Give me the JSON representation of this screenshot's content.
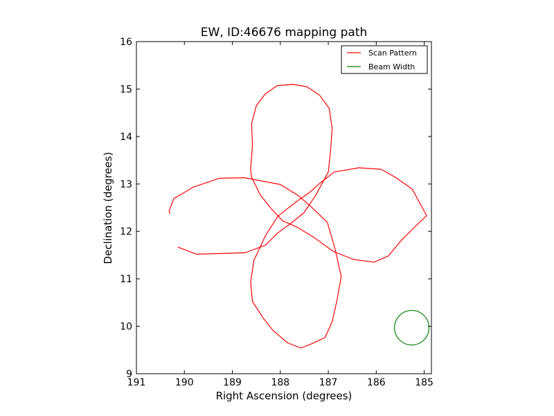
{
  "chart_data": {
    "type": "line",
    "title": "EW, ID:46676 mapping path",
    "xlabel": "Right Ascension (degrees)",
    "ylabel": "Declination (degrees)",
    "xlim": [
      191,
      184.85
    ],
    "ylim": [
      9,
      16
    ],
    "x_inverted": true,
    "xticks": [
      191,
      190,
      189,
      188,
      187,
      186,
      185
    ],
    "yticks": [
      9,
      10,
      11,
      12,
      13,
      14,
      15,
      16
    ],
    "grid": false,
    "legend_position": "top-right",
    "series": [
      {
        "name": "Scan Pattern",
        "color": "#ff0000",
        "points": [
          [
            190.3,
            12.37
          ],
          [
            190.32,
            12.43
          ],
          [
            190.22,
            12.69
          ],
          [
            189.82,
            12.93
          ],
          [
            189.27,
            13.12
          ],
          [
            188.75,
            13.13
          ],
          [
            188.0,
            12.99
          ],
          [
            187.62,
            12.75
          ],
          [
            187.36,
            12.52
          ],
          [
            187.02,
            12.19
          ],
          [
            186.86,
            11.63
          ],
          [
            186.73,
            11.05
          ],
          [
            186.82,
            10.54
          ],
          [
            186.92,
            10.09
          ],
          [
            187.07,
            9.76
          ],
          [
            187.35,
            9.63
          ],
          [
            187.57,
            9.54
          ],
          [
            187.85,
            9.65
          ],
          [
            188.15,
            9.91
          ],
          [
            188.35,
            10.16
          ],
          [
            188.58,
            10.52
          ],
          [
            188.62,
            10.93
          ],
          [
            188.55,
            11.39
          ],
          [
            188.31,
            11.91
          ],
          [
            188.05,
            12.32
          ],
          [
            187.66,
            12.63
          ],
          [
            187.38,
            12.83
          ],
          [
            187.17,
            13.02
          ],
          [
            186.88,
            13.25
          ],
          [
            186.36,
            13.34
          ],
          [
            185.9,
            13.31
          ],
          [
            185.6,
            13.14
          ],
          [
            185.25,
            12.89
          ],
          [
            184.95,
            12.33
          ],
          [
            185.17,
            12.12
          ],
          [
            185.48,
            11.81
          ],
          [
            185.75,
            11.48
          ],
          [
            186.05,
            11.35
          ],
          [
            186.48,
            11.41
          ],
          [
            186.9,
            11.58
          ],
          [
            187.28,
            11.86
          ],
          [
            187.65,
            12.09
          ],
          [
            187.95,
            12.22
          ],
          [
            188.19,
            12.48
          ],
          [
            188.42,
            12.77
          ],
          [
            188.6,
            13.15
          ],
          [
            188.62,
            13.31
          ],
          [
            188.58,
            13.81
          ],
          [
            188.6,
            14.27
          ],
          [
            188.5,
            14.65
          ],
          [
            188.32,
            14.89
          ],
          [
            188.07,
            15.07
          ],
          [
            187.74,
            15.1
          ],
          [
            187.45,
            15.05
          ],
          [
            187.18,
            14.87
          ],
          [
            186.98,
            14.59
          ],
          [
            186.92,
            14.17
          ],
          [
            186.95,
            13.72
          ],
          [
            187.0,
            13.25
          ],
          [
            187.27,
            12.75
          ],
          [
            187.51,
            12.39
          ],
          [
            187.78,
            12.17
          ],
          [
            188.05,
            11.97
          ],
          [
            188.31,
            11.71
          ],
          [
            188.73,
            11.55
          ],
          [
            189.75,
            11.52
          ],
          [
            190.14,
            11.67
          ]
        ]
      },
      {
        "name": "Beam Width",
        "color": "#008000",
        "shape": "circle",
        "center": [
          185.26,
          9.97
        ],
        "radius_deg": 0.36
      }
    ]
  }
}
